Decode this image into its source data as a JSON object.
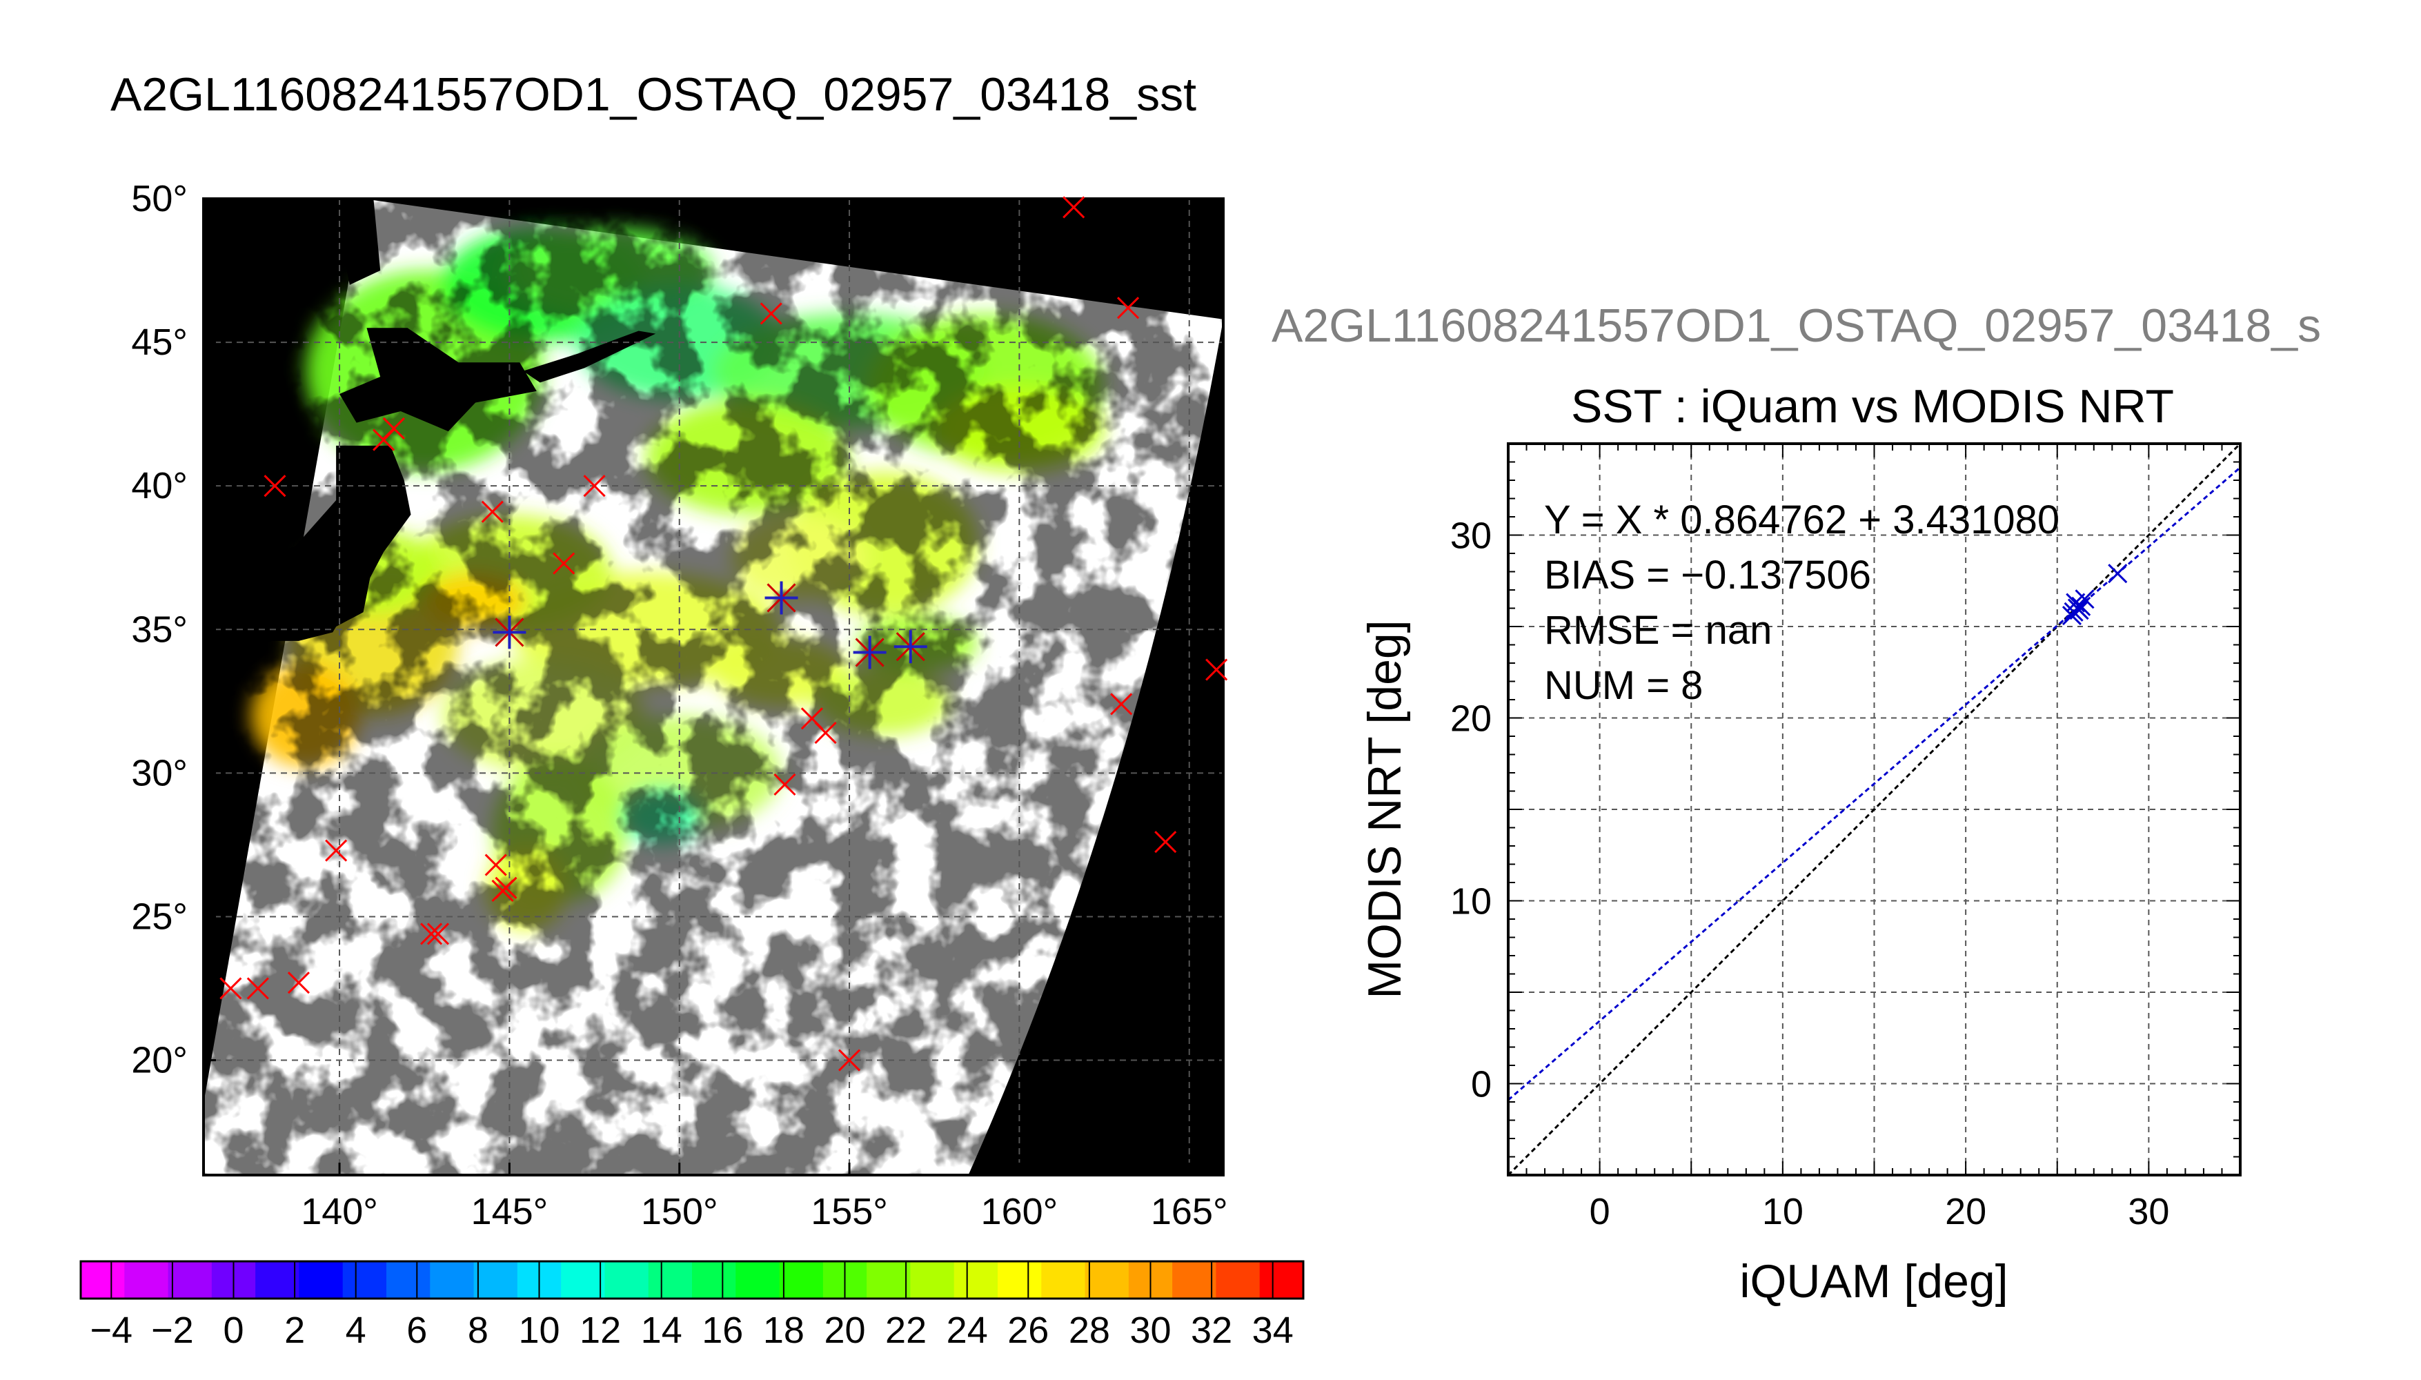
{
  "page": {
    "map_title": "A2GL11608241557OD1_OSTAQ_02957_03418_sst",
    "scatter_caption": "A2GL11608241557OD1_OSTAQ_02957_03418_s"
  },
  "chart_data": [
    {
      "type": "map",
      "title": "A2GL11608241557OD1_OSTAQ_02957_03418_sst",
      "lon_range": [
        136,
        166
      ],
      "lat_range": [
        16,
        50
      ],
      "lon_ticks": [
        {
          "value": 140,
          "label": "140°"
        },
        {
          "value": 145,
          "label": "145°"
        },
        {
          "value": 150,
          "label": "150°"
        },
        {
          "value": 155,
          "label": "155°"
        },
        {
          "value": 160,
          "label": "160°"
        },
        {
          "value": 165,
          "label": "165°"
        }
      ],
      "lat_ticks": [
        {
          "value": 20,
          "label": "20°"
        },
        {
          "value": 25,
          "label": "25°"
        },
        {
          "value": 30,
          "label": "30°"
        },
        {
          "value": 35,
          "label": "35°"
        },
        {
          "value": 40,
          "label": "40°"
        },
        {
          "value": 45,
          "label": "45°"
        },
        {
          "value": 50,
          "label": "50°"
        }
      ],
      "grid": true,
      "swath_outline": [
        [
          140.7,
          50.0
        ],
        [
          166.0,
          45.8
        ],
        [
          158.5,
          16.0
        ],
        [
          136.0,
          16.0
        ],
        [
          136.0,
          18.5
        ]
      ],
      "land_color": "#000000",
      "cloud_color": "#ffffff",
      "insitu_points_red_x": [
        [
          161.6,
          49.7
        ],
        [
          163.2,
          46.2
        ],
        [
          152.7,
          46.0
        ],
        [
          141.3,
          41.6
        ],
        [
          141.6,
          42.0
        ],
        [
          138.1,
          40.0
        ],
        [
          144.5,
          39.1
        ],
        [
          147.5,
          40.0
        ],
        [
          146.6,
          37.3
        ],
        [
          165.8,
          33.6
        ],
        [
          163.0,
          32.4
        ],
        [
          153.9,
          31.9
        ],
        [
          154.3,
          31.4
        ],
        [
          153.1,
          29.6
        ],
        [
          164.3,
          27.6
        ],
        [
          139.9,
          27.3
        ],
        [
          144.6,
          26.8
        ],
        [
          144.8,
          25.9
        ],
        [
          144.9,
          26.0
        ],
        [
          142.7,
          24.4
        ],
        [
          142.9,
          24.4
        ],
        [
          136.8,
          22.5
        ],
        [
          137.6,
          22.5
        ],
        [
          138.8,
          22.7
        ],
        [
          155.0,
          20.0
        ]
      ],
      "matchup_points_blue_star": [
        [
          145.0,
          34.9
        ],
        [
          153.0,
          36.1
        ],
        [
          155.6,
          34.2
        ],
        [
          156.8,
          34.4
        ]
      ]
    },
    {
      "type": "colorbar",
      "min": -5,
      "max": 35,
      "tick_values": [
        -4,
        -2,
        0,
        2,
        4,
        6,
        8,
        10,
        12,
        14,
        16,
        18,
        20,
        22,
        24,
        26,
        28,
        30,
        32,
        34
      ],
      "tick_labels": [
        "−4",
        "−2",
        "0",
        "2",
        "4",
        "6",
        "8",
        "10",
        "12",
        "14",
        "16",
        "18",
        "20",
        "22",
        "24",
        "26",
        "28",
        "30",
        "32",
        "34"
      ],
      "colors": [
        "#ff00ff",
        "#d000ff",
        "#a000ff",
        "#7000ff",
        "#3000ff",
        "#0000ff",
        "#0030ff",
        "#0060ff",
        "#0090ff",
        "#00b8ff",
        "#00e0ff",
        "#00ffe0",
        "#00ffb0",
        "#00ff80",
        "#00ff50",
        "#00ff20",
        "#20ff00",
        "#50ff00",
        "#80ff00",
        "#b0ff00",
        "#d8ff00",
        "#ffff00",
        "#ffe000",
        "#ffc000",
        "#ffa000",
        "#ff7000",
        "#ff4000",
        "#ff0000"
      ]
    },
    {
      "type": "scatter",
      "title": "SST : iQuam vs MODIS NRT",
      "xlabel": "iQUAM [deg]",
      "ylabel": "MODIS NRT [deg]",
      "xlim": [
        -5,
        35
      ],
      "ylim": [
        -5,
        35
      ],
      "xticks": [
        0,
        10,
        20,
        30
      ],
      "yticks": [
        0,
        10,
        20,
        30
      ],
      "grid_step": 5,
      "annotations": [
        "Y = X * 0.864762 + 3.431080",
        "BIAS = −0.137506",
        "RMSE = nan",
        "NUM = 8"
      ],
      "points": [
        [
          25.9,
          25.8
        ],
        [
          26.1,
          26.0
        ],
        [
          26.0,
          26.3
        ],
        [
          26.3,
          26.1
        ],
        [
          26.5,
          26.5
        ],
        [
          26.2,
          25.9
        ],
        [
          25.8,
          25.6
        ],
        [
          28.3,
          27.9
        ]
      ],
      "fit": {
        "slope": 0.864762,
        "intercept": 3.43108,
        "color": "#0000cc"
      },
      "identity_color": "#000000",
      "point_color": "#0000cc"
    }
  ]
}
